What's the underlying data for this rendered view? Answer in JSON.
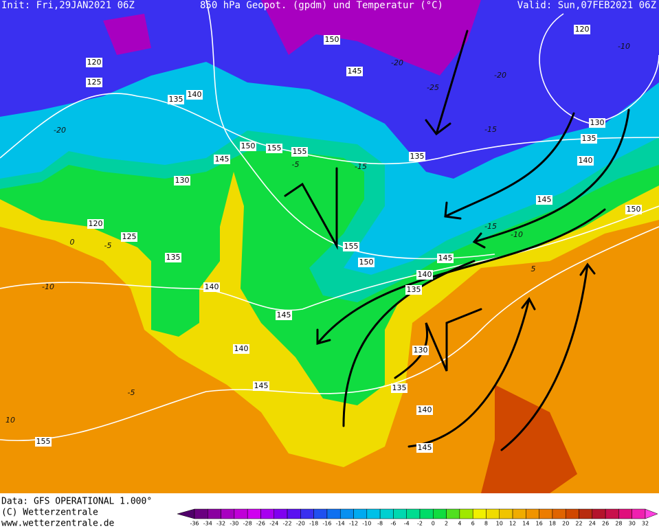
{
  "header": {
    "init": "Init: Fri,29JAN2021 06Z",
    "title": "850 hPa Geopot. (gpdm) und Temperatur (°C)",
    "valid": "Valid: Sun,07FEB2021 06Z"
  },
  "geopotential_labels": [
    150,
    145,
    120,
    125,
    135,
    140,
    120,
    130,
    135,
    140,
    145,
    150,
    150,
    155,
    155,
    145,
    130,
    135,
    120,
    125,
    135,
    140,
    155,
    150,
    145,
    140,
    135,
    145,
    140,
    130,
    145,
    135,
    140,
    145,
    155
  ],
  "temperature_labels": [
    -20,
    -25,
    -20,
    -10,
    -15,
    -15,
    -20,
    -5,
    -15,
    -10,
    0,
    -5,
    -10,
    -5,
    10,
    5
  ],
  "footer": {
    "data": "Data: GFS OPERATIONAL 1.000°",
    "copyright": "(C) Wetterzentrale",
    "url": "www.wetterzentrale.de"
  },
  "colorbar": {
    "ticks": [
      -36,
      -34,
      -32,
      -30,
      -28,
      -26,
      -24,
      -22,
      -20,
      -18,
      -16,
      -14,
      -12,
      -10,
      -8,
      -6,
      -4,
      -2,
      0,
      2,
      4,
      6,
      8,
      10,
      12,
      14,
      16,
      18,
      20,
      22,
      24,
      26,
      28,
      30,
      32
    ],
    "colors": [
      "#50006a",
      "#6a0080",
      "#8a00a0",
      "#a800c0",
      "#c000d8",
      "#d000f0",
      "#a800f0",
      "#8000f0",
      "#5a10f0",
      "#3a30f0",
      "#2050f0",
      "#1070f0",
      "#0890f0",
      "#00aaf0",
      "#00c0e8",
      "#00d0d0",
      "#00d8b0",
      "#00dc90",
      "#00dc68",
      "#10dc40",
      "#50e020",
      "#a0e800",
      "#f0f000",
      "#f0dc00",
      "#f0c400",
      "#f0ac00",
      "#f09400",
      "#ec7c00",
      "#e06400",
      "#d04800",
      "#b82c10",
      "#b4142c",
      "#c8104c",
      "#e0107c",
      "#f020b0",
      "#ff40e0"
    ]
  }
}
